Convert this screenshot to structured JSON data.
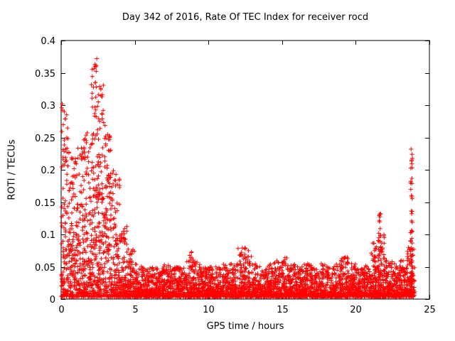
{
  "chart_data": {
    "type": "scatter",
    "title": "Day 342 of 2016, Rate Of TEC Index for receiver rocd",
    "xlabel": "GPS time / hours",
    "ylabel": "ROTI / TECUs",
    "xlim": [
      0,
      25
    ],
    "ylim": [
      0,
      0.4
    ],
    "xticks": [
      0,
      5,
      10,
      15,
      20,
      25
    ],
    "xtick_labels": [
      "0",
      "5",
      "10",
      "15",
      "20",
      "25"
    ],
    "yticks": [
      0,
      0.05,
      0.1,
      0.15,
      0.2,
      0.25,
      0.3,
      0.35,
      0.4
    ],
    "ytick_labels": [
      "0",
      "0.05",
      "0.1",
      "0.15",
      "0.2",
      "0.25",
      "0.3",
      "0.35",
      "0.4"
    ],
    "grid": false,
    "legend": "none",
    "marker": "plus",
    "series_name": "ROTI",
    "description": "Dense red plus-marker scatter: high scintillation burst 0-5h (peaks to 0.37 TECU near 2.4h), quiet baseline 0.005-0.05 from 5h to 24h with small bumps near 8.8h, 12.3h, 15.2h, 19.1h, a spike column near 21.6h (to 0.13) and a tall narrow spike near 23.8h (to 0.23)",
    "envelope_bins": [
      [
        0.0,
        0.3,
        130,
        2.2
      ],
      [
        0.5,
        0.23,
        120,
        2.4
      ],
      [
        1.0,
        0.24,
        120,
        2.4
      ],
      [
        1.5,
        0.26,
        130,
        2.3
      ],
      [
        2.0,
        0.37,
        150,
        2.1
      ],
      [
        2.5,
        0.34,
        140,
        2.2
      ],
      [
        3.0,
        0.26,
        130,
        2.3
      ],
      [
        3.5,
        0.2,
        120,
        2.5
      ],
      [
        4.0,
        0.12,
        110,
        2.7
      ],
      [
        4.5,
        0.08,
        100,
        3.0
      ],
      [
        5.0,
        0.055,
        90,
        2.2
      ],
      [
        5.5,
        0.05,
        90,
        2.2
      ],
      [
        6.0,
        0.05,
        90,
        2.2
      ],
      [
        6.5,
        0.05,
        90,
        2.2
      ],
      [
        7.0,
        0.055,
        90,
        2.2
      ],
      [
        7.5,
        0.05,
        90,
        2.2
      ],
      [
        8.0,
        0.05,
        90,
        2.2
      ],
      [
        8.5,
        0.075,
        95,
        2.6
      ],
      [
        9.0,
        0.06,
        90,
        2.4
      ],
      [
        9.5,
        0.05,
        90,
        2.2
      ],
      [
        10.0,
        0.05,
        90,
        2.2
      ],
      [
        10.5,
        0.05,
        90,
        2.2
      ],
      [
        11.0,
        0.055,
        90,
        2.2
      ],
      [
        11.5,
        0.055,
        90,
        2.2
      ],
      [
        12.0,
        0.08,
        100,
        2.6
      ],
      [
        12.5,
        0.075,
        95,
        2.6
      ],
      [
        13.0,
        0.055,
        90,
        2.2
      ],
      [
        13.5,
        0.05,
        90,
        2.2
      ],
      [
        14.0,
        0.055,
        90,
        2.2
      ],
      [
        14.5,
        0.06,
        90,
        2.3
      ],
      [
        15.0,
        0.065,
        95,
        2.5
      ],
      [
        15.5,
        0.055,
        90,
        2.2
      ],
      [
        16.0,
        0.05,
        90,
        2.2
      ],
      [
        16.5,
        0.055,
        90,
        2.2
      ],
      [
        17.0,
        0.05,
        90,
        2.2
      ],
      [
        17.5,
        0.055,
        90,
        2.2
      ],
      [
        18.0,
        0.05,
        90,
        2.2
      ],
      [
        18.5,
        0.055,
        90,
        2.2
      ],
      [
        19.0,
        0.065,
        95,
        2.5
      ],
      [
        19.5,
        0.055,
        90,
        2.2
      ],
      [
        20.0,
        0.05,
        90,
        2.2
      ],
      [
        20.5,
        0.055,
        90,
        2.2
      ],
      [
        21.0,
        0.09,
        95,
        2.8
      ],
      [
        21.5,
        0.1,
        95,
        2.8
      ],
      [
        22.0,
        0.06,
        90,
        2.3
      ],
      [
        22.5,
        0.055,
        90,
        2.2
      ],
      [
        23.0,
        0.06,
        90,
        2.3
      ],
      [
        23.5,
        0.08,
        95,
        2.6
      ]
    ],
    "spike_columns": [
      {
        "x": 21.62,
        "w": 0.18,
        "ymax": 0.132,
        "n": 40,
        "skew": 1.8
      },
      {
        "x": 21.3,
        "w": 0.12,
        "ymax": 0.085,
        "n": 18,
        "skew": 2.2
      },
      {
        "x": 23.78,
        "w": 0.16,
        "ymax": 0.232,
        "n": 55,
        "skew": 1.6
      }
    ],
    "peak_points": [
      [
        2.42,
        0.372
      ],
      [
        2.33,
        0.335
      ],
      [
        2.38,
        0.328
      ],
      [
        2.52,
        0.305
      ],
      [
        2.47,
        0.298
      ],
      [
        2.62,
        0.275
      ],
      [
        0.07,
        0.302
      ],
      [
        0.1,
        0.292
      ],
      [
        3.02,
        0.252
      ],
      [
        3.3,
        0.25
      ],
      [
        1.62,
        0.248
      ],
      [
        1.57,
        0.232
      ],
      [
        23.76,
        0.232
      ],
      [
        23.82,
        0.224
      ],
      [
        23.79,
        0.215
      ],
      [
        21.64,
        0.131
      ],
      [
        8.85,
        0.072
      ],
      [
        12.3,
        0.079
      ],
      [
        15.2,
        0.064
      ],
      [
        19.15,
        0.063
      ]
    ]
  },
  "figure": {
    "background": "#ffffff",
    "axis_color": "#000000",
    "text_color": "#000000",
    "marker_color": "#ff0000"
  }
}
